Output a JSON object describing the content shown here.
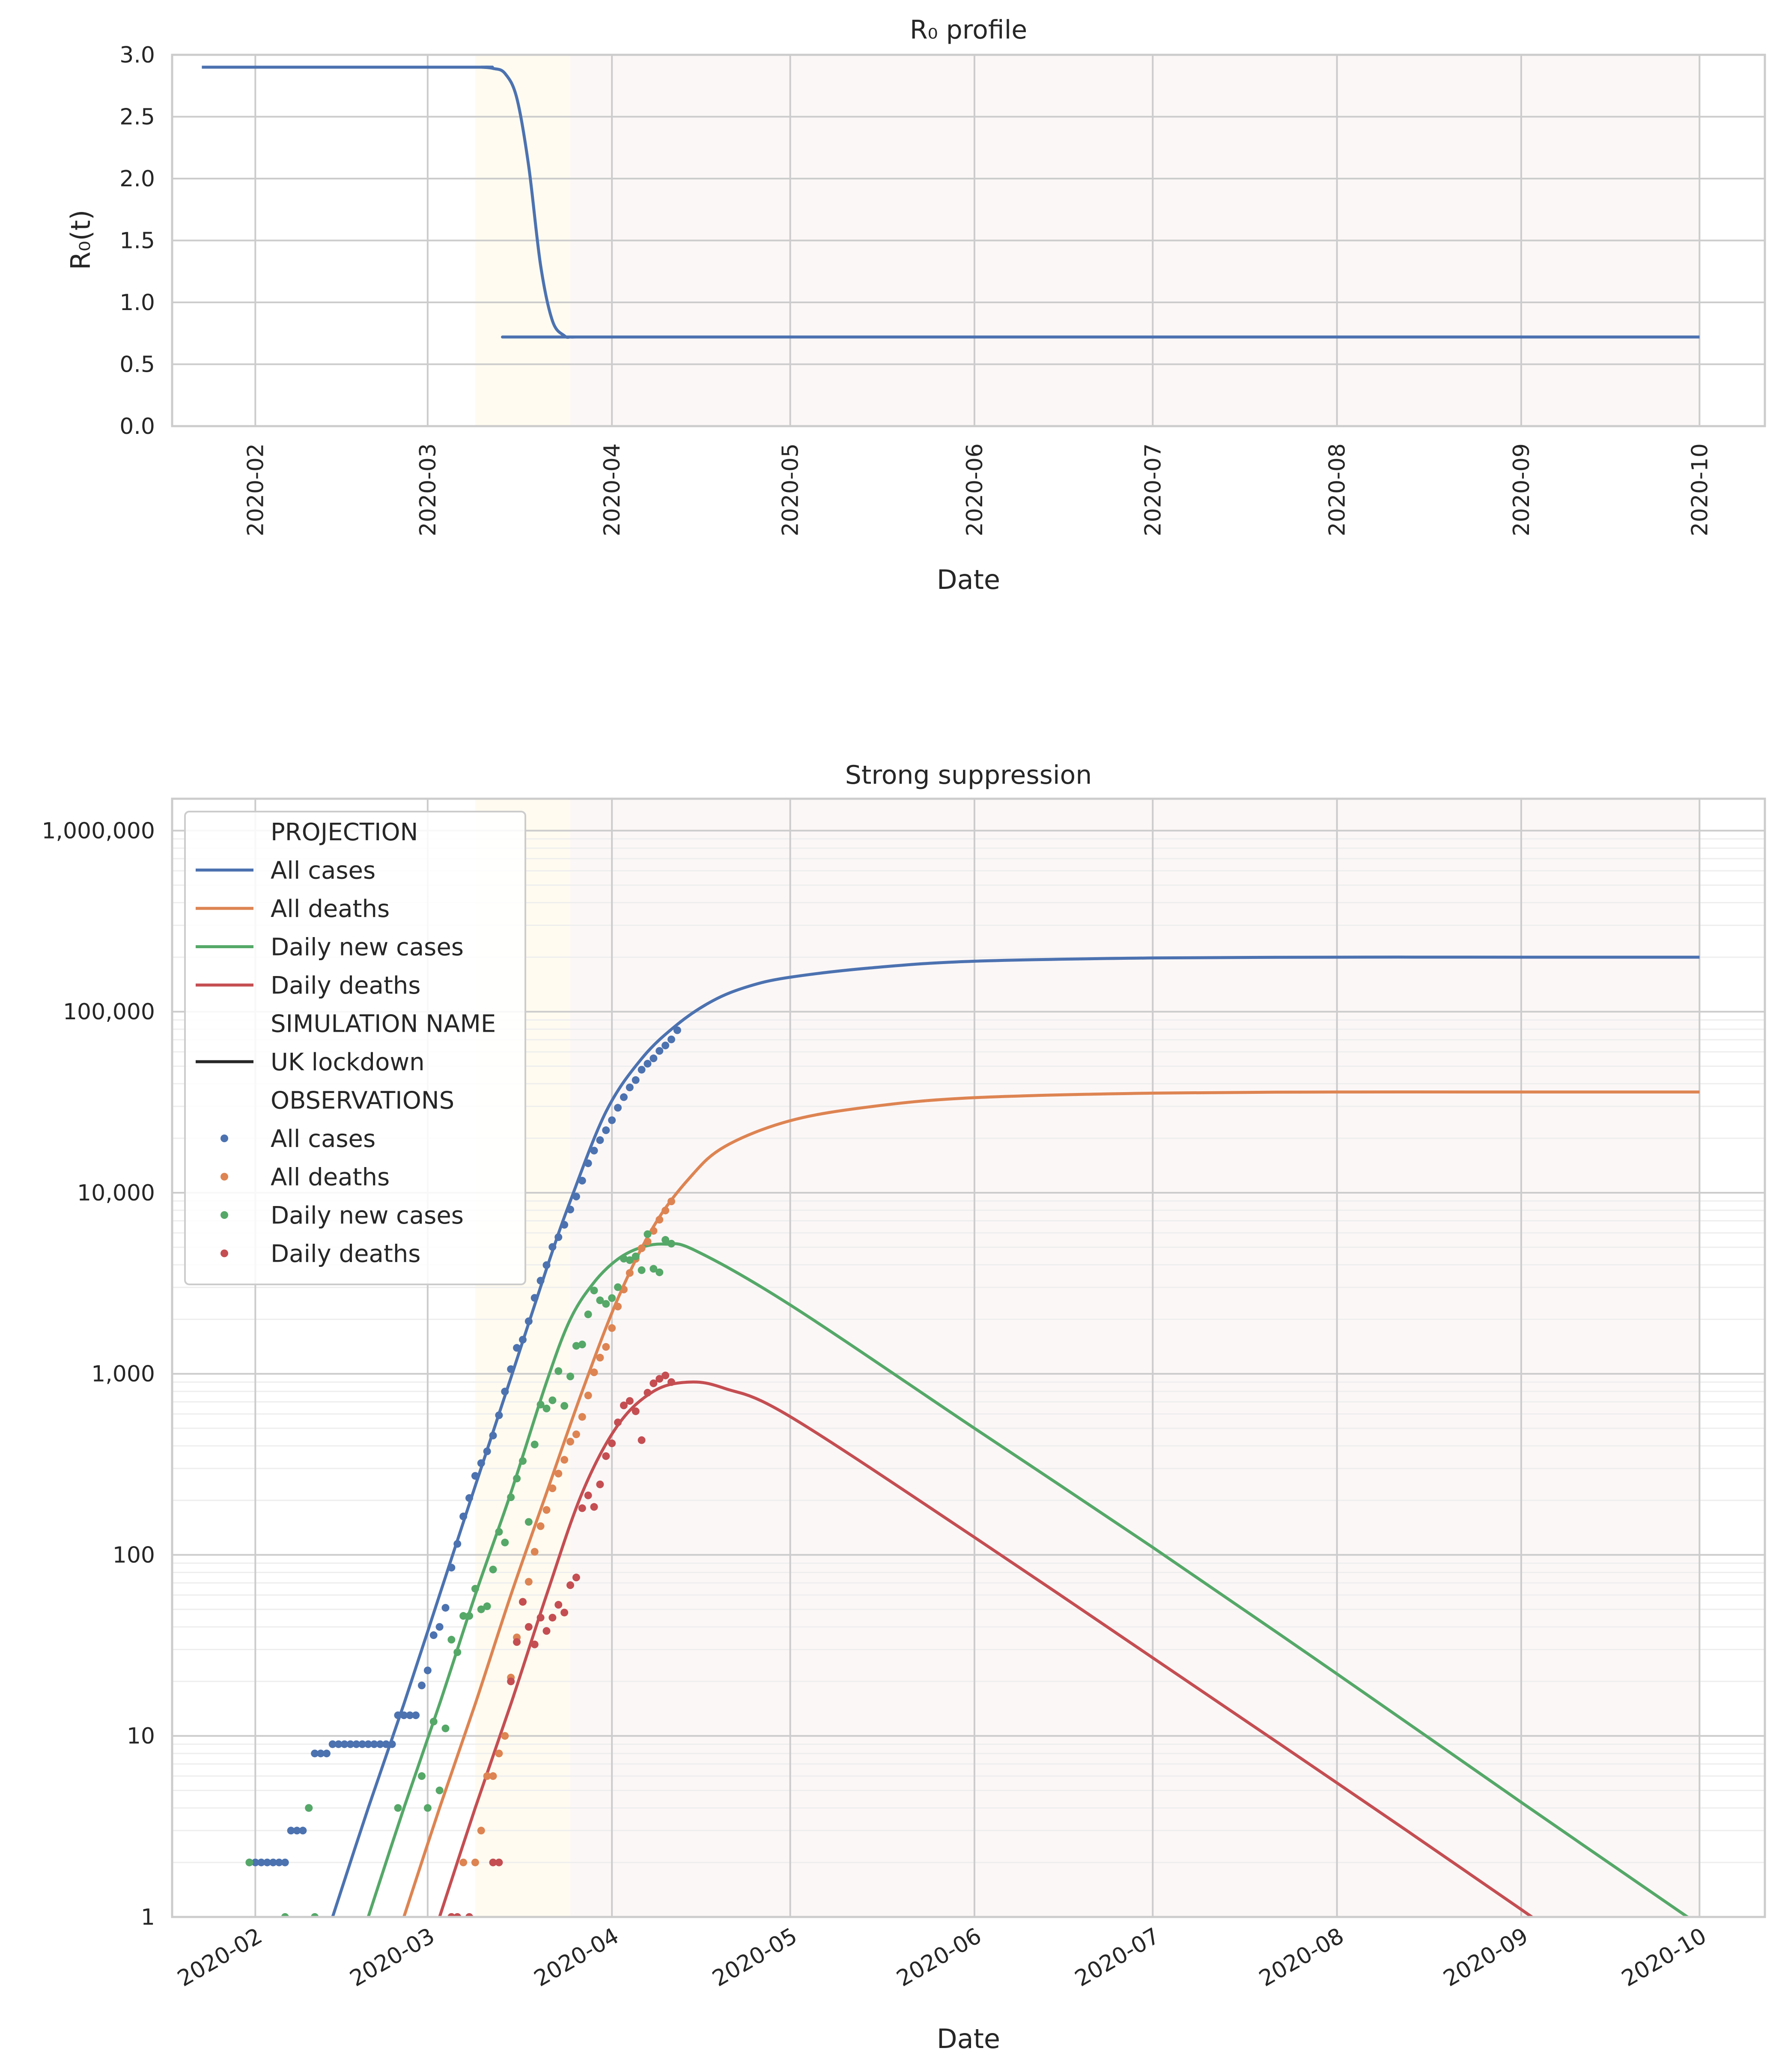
{
  "chart_data": [
    {
      "type": "line",
      "title": "R₀ profile",
      "xlabel": "Date",
      "ylabel": "R₀(t)",
      "xlim": [
        "2020-01-18",
        "2020-10-12"
      ],
      "ylim": [
        0,
        3
      ],
      "yticks": [
        0,
        0.5,
        1,
        1.5,
        2,
        2.5,
        3
      ],
      "ytick_labels": [
        "0.0",
        "0.5",
        "1.0",
        "1.5",
        "2.0",
        "2.5",
        "3.0"
      ],
      "xtick_labels": [
        "2020-02",
        "2020-03",
        "2020-04",
        "2020-05",
        "2020-06",
        "2020-07",
        "2020-08",
        "2020-09",
        "2020-10"
      ],
      "xtick_dates": [
        "2020-02-01",
        "2020-03-01",
        "2020-04-01",
        "2020-05-01",
        "2020-06-01",
        "2020-07-01",
        "2020-08-01",
        "2020-09-01",
        "2020-10-01"
      ],
      "grid": true,
      "shaded_regions": [
        {
          "start": "2020-03-09",
          "end": "2020-03-25",
          "color": "#fffbf0"
        },
        {
          "start": "2020-03-25",
          "end": "2020-10-01",
          "color": "#fcf7f7"
        }
      ],
      "series": [
        {
          "color": "#4c72b0",
          "x": [
            "2020-01-23",
            "2020-03-08",
            "2020-03-10",
            "2020-03-12",
            "2020-03-14",
            "2020-03-16",
            "2020-03-18",
            "2020-03-20",
            "2020-03-22",
            "2020-03-24",
            "2020-03-25",
            "2020-03-26",
            "2020-03-28",
            "2020-10-01"
          ],
          "values": [
            2.9,
            2.9,
            2.9,
            2.89,
            2.85,
            2.65,
            2.1,
            1.3,
            0.85,
            0.73,
            0.72,
            0.72,
            0.72,
            0.72
          ]
        }
      ]
    },
    {
      "type": "line",
      "title": "Strong suppression",
      "xlabel": "Date",
      "ylabel": "",
      "yscale": "log",
      "xlim": [
        "2020-01-18",
        "2020-10-12"
      ],
      "ylim": [
        1,
        1500000
      ],
      "yticks": [
        1,
        10,
        100,
        1000,
        10000,
        100000,
        1000000
      ],
      "ytick_labels": [
        "1",
        "10",
        "100",
        "1,000",
        "10,000",
        "100,000",
        "1,000,000"
      ],
      "xtick_labels": [
        "2020-02",
        "2020-03",
        "2020-04",
        "2020-05",
        "2020-06",
        "2020-07",
        "2020-08",
        "2020-09",
        "2020-10"
      ],
      "xtick_dates": [
        "2020-02-01",
        "2020-03-01",
        "2020-04-01",
        "2020-05-01",
        "2020-06-01",
        "2020-07-01",
        "2020-08-01",
        "2020-09-01",
        "2020-10-01"
      ],
      "grid": true,
      "shaded_regions": [
        {
          "start": "2020-03-09",
          "end": "2020-03-25",
          "color": "#fffbf0"
        },
        {
          "start": "2020-03-25",
          "end": "2020-10-01",
          "color": "#fcf7f7"
        }
      ],
      "legend": {
        "position": "top-left",
        "entries": [
          {
            "label": "PROJECTION",
            "kind": "header"
          },
          {
            "label": "All cases",
            "kind": "line",
            "color": "#4c72b0"
          },
          {
            "label": "All deaths",
            "kind": "line",
            "color": "#dd8452"
          },
          {
            "label": "Daily new cases",
            "kind": "line",
            "color": "#55a868"
          },
          {
            "label": "Daily deaths",
            "kind": "line",
            "color": "#c44e52"
          },
          {
            "label": "SIMULATION NAME",
            "kind": "header"
          },
          {
            "label": "UK lockdown",
            "kind": "line",
            "color": "#262626"
          },
          {
            "label": "OBSERVATIONS",
            "kind": "header"
          },
          {
            "label": "All cases",
            "kind": "dot",
            "color": "#4c72b0"
          },
          {
            "label": "All deaths",
            "kind": "dot",
            "color": "#dd8452"
          },
          {
            "label": "Daily new cases",
            "kind": "dot",
            "color": "#55a868"
          },
          {
            "label": "Daily deaths",
            "kind": "dot",
            "color": "#c44e52"
          }
        ]
      },
      "series": [
        {
          "group": "projection",
          "color": "#4c72b0",
          "x": [
            "2020-02-14",
            "2020-02-20",
            "2020-02-26",
            "2020-03-03",
            "2020-03-09",
            "2020-03-15",
            "2020-03-21",
            "2020-03-25",
            "2020-03-31",
            "2020-04-06",
            "2020-04-12",
            "2020-04-18",
            "2020-04-24",
            "2020-05-01",
            "2020-05-15",
            "2020-06-01",
            "2020-07-01",
            "2020-08-01",
            "2020-09-01",
            "2020-10-01"
          ],
          "values": [
            1,
            4,
            15,
            60,
            240,
            950,
            3800,
            9000,
            28000,
            55000,
            85000,
            115000,
            138000,
            155000,
            175000,
            190000,
            198000,
            200000,
            200000,
            200000
          ]
        },
        {
          "group": "projection",
          "color": "#dd8452",
          "x": [
            "2020-02-26",
            "2020-03-03",
            "2020-03-09",
            "2020-03-15",
            "2020-03-21",
            "2020-03-27",
            "2020-04-02",
            "2020-04-08",
            "2020-04-14",
            "2020-04-20",
            "2020-05-01",
            "2020-05-15",
            "2020-06-01",
            "2020-07-01",
            "2020-08-01",
            "2020-09-01",
            "2020-10-01"
          ],
          "values": [
            1,
            4,
            15,
            60,
            220,
            800,
            2600,
            6500,
            12000,
            18000,
            25000,
            30000,
            33500,
            35500,
            36000,
            36000,
            36000
          ]
        },
        {
          "group": "projection",
          "color": "#55a868",
          "x": [
            "2020-02-20",
            "2020-02-26",
            "2020-03-03",
            "2020-03-09",
            "2020-03-15",
            "2020-03-21",
            "2020-03-25",
            "2020-03-29",
            "2020-04-02",
            "2020-04-06",
            "2020-04-10",
            "2020-04-15",
            "2020-05-01",
            "2020-06-01",
            "2020-07-01",
            "2020-08-01",
            "2020-09-01",
            "2020-10-01"
          ],
          "values": [
            1,
            4,
            15,
            60,
            220,
            900,
            2000,
            3200,
            4300,
            5000,
            5200,
            4800,
            2400,
            500,
            110,
            22,
            4.3,
            0.9
          ]
        },
        {
          "group": "projection",
          "color": "#c44e52",
          "x": [
            "2020-03-03",
            "2020-03-09",
            "2020-03-15",
            "2020-03-21",
            "2020-03-27",
            "2020-04-02",
            "2020-04-08",
            "2020-04-14",
            "2020-04-20",
            "2020-05-01",
            "2020-06-01",
            "2020-07-01",
            "2020-08-01",
            "2020-09-01",
            "2020-10-01"
          ],
          "values": [
            1,
            4,
            15,
            60,
            220,
            520,
            800,
            900,
            830,
            580,
            125,
            27,
            5.5,
            1.1,
            0.22
          ]
        },
        {
          "group": "observations",
          "kind": "scatter",
          "color": "#4c72b0",
          "x": [
            "2020-01-31",
            "2020-02-01",
            "2020-02-02",
            "2020-02-03",
            "2020-02-04",
            "2020-02-05",
            "2020-02-06",
            "2020-02-07",
            "2020-02-08",
            "2020-02-09",
            "2020-02-10",
            "2020-02-11",
            "2020-02-12",
            "2020-02-13",
            "2020-02-14",
            "2020-02-15",
            "2020-02-16",
            "2020-02-17",
            "2020-02-18",
            "2020-02-19",
            "2020-02-20",
            "2020-02-21",
            "2020-02-22",
            "2020-02-23",
            "2020-02-24",
            "2020-02-25",
            "2020-02-26",
            "2020-02-27",
            "2020-02-28",
            "2020-02-29",
            "2020-03-01",
            "2020-03-02",
            "2020-03-03",
            "2020-03-04",
            "2020-03-05",
            "2020-03-06",
            "2020-03-07",
            "2020-03-08",
            "2020-03-09",
            "2020-03-10",
            "2020-03-11",
            "2020-03-12",
            "2020-03-13",
            "2020-03-14",
            "2020-03-15",
            "2020-03-16",
            "2020-03-17",
            "2020-03-18",
            "2020-03-19",
            "2020-03-20",
            "2020-03-21",
            "2020-03-22",
            "2020-03-23",
            "2020-03-24",
            "2020-03-25",
            "2020-03-26",
            "2020-03-27",
            "2020-03-28",
            "2020-03-29",
            "2020-03-30",
            "2020-03-31",
            "2020-04-01",
            "2020-04-02",
            "2020-04-03",
            "2020-04-04",
            "2020-04-05",
            "2020-04-06",
            "2020-04-07",
            "2020-04-08",
            "2020-04-09",
            "2020-04-10",
            "2020-04-11",
            "2020-04-12"
          ],
          "values": [
            2,
            2,
            2,
            2,
            2,
            2,
            2,
            3,
            3,
            3,
            4,
            8,
            8,
            8,
            9,
            9,
            9,
            9,
            9,
            9,
            9,
            9,
            9,
            9,
            9,
            13,
            13,
            13,
            13,
            19,
            23,
            36,
            40,
            51,
            85,
            115,
            163,
            206,
            273,
            321,
            373,
            456,
            590,
            798,
            1061,
            1391,
            1543,
            1950,
            2626,
            3269,
            3983,
            5018,
            5683,
            6650,
            8077,
            9529,
            11658,
            14543,
            17089,
            19522,
            22141,
            25150,
            29474,
            33718,
            38168,
            41903,
            47806,
            51608,
            55242,
            60733,
            65077,
            70272,
            78991
          ]
        },
        {
          "group": "observations",
          "kind": "scatter",
          "color": "#dd8452",
          "x": [
            "2020-03-05",
            "2020-03-07",
            "2020-03-09",
            "2020-03-10",
            "2020-03-11",
            "2020-03-12",
            "2020-03-13",
            "2020-03-14",
            "2020-03-15",
            "2020-03-16",
            "2020-03-17",
            "2020-03-18",
            "2020-03-19",
            "2020-03-20",
            "2020-03-21",
            "2020-03-22",
            "2020-03-23",
            "2020-03-24",
            "2020-03-25",
            "2020-03-26",
            "2020-03-27",
            "2020-03-28",
            "2020-03-29",
            "2020-03-30",
            "2020-03-31",
            "2020-04-01",
            "2020-04-02",
            "2020-04-03",
            "2020-04-04",
            "2020-04-05",
            "2020-04-06",
            "2020-04-07",
            "2020-04-08",
            "2020-04-09",
            "2020-04-10",
            "2020-04-11"
          ],
          "values": [
            1,
            2,
            2,
            3,
            6,
            6,
            8,
            10,
            21,
            35,
            55,
            71,
            104,
            144,
            177,
            233,
            281,
            335,
            422,
            463,
            578,
            759,
            1019,
            1228,
            1408,
            1789,
            2352,
            2921,
            3605,
            4313,
            4934,
            5373,
            6159,
            7097,
            7978,
            8958
          ]
        },
        {
          "group": "observations",
          "kind": "scatter",
          "color": "#55a868",
          "x": [
            "2020-01-31",
            "2020-02-06",
            "2020-02-10",
            "2020-02-11",
            "2020-02-25",
            "2020-02-29",
            "2020-03-01",
            "2020-03-02",
            "2020-03-03",
            "2020-03-04",
            "2020-03-05",
            "2020-03-06",
            "2020-03-07",
            "2020-03-08",
            "2020-03-09",
            "2020-03-10",
            "2020-03-11",
            "2020-03-12",
            "2020-03-13",
            "2020-03-14",
            "2020-03-15",
            "2020-03-16",
            "2020-03-17",
            "2020-03-18",
            "2020-03-19",
            "2020-03-20",
            "2020-03-21",
            "2020-03-22",
            "2020-03-23",
            "2020-03-24",
            "2020-03-25",
            "2020-03-26",
            "2020-03-27",
            "2020-03-28",
            "2020-03-29",
            "2020-03-30",
            "2020-03-31",
            "2020-04-01",
            "2020-04-02",
            "2020-04-03",
            "2020-04-04",
            "2020-04-05",
            "2020-04-06",
            "2020-04-07",
            "2020-04-08",
            "2020-04-09",
            "2020-04-10",
            "2020-04-11"
          ],
          "values": [
            2,
            1,
            4,
            1,
            4,
            6,
            4,
            12,
            5,
            11,
            34,
            29,
            46,
            46,
            65,
            50,
            52,
            83,
            134,
            117,
            208,
            264,
            330,
            152,
            407,
            676,
            643,
            714,
            1035,
            665,
            967,
            1427,
            1452,
            2129,
            2885,
            2546,
            2433,
            2619,
            3009,
            4324,
            4244,
            4450,
            3735,
            5903,
            3802,
            3634,
            5491,
            5233
          ]
        },
        {
          "group": "observations",
          "kind": "scatter",
          "color": "#c44e52",
          "x": [
            "2020-03-05",
            "2020-03-06",
            "2020-03-08",
            "2020-03-12",
            "2020-03-13",
            "2020-03-15",
            "2020-03-16",
            "2020-03-17",
            "2020-03-18",
            "2020-03-19",
            "2020-03-20",
            "2020-03-21",
            "2020-03-22",
            "2020-03-23",
            "2020-03-24",
            "2020-03-25",
            "2020-03-26",
            "2020-03-27",
            "2020-03-28",
            "2020-03-29",
            "2020-03-30",
            "2020-03-31",
            "2020-04-01",
            "2020-04-02",
            "2020-04-03",
            "2020-04-04",
            "2020-04-05",
            "2020-04-06",
            "2020-04-07",
            "2020-04-08",
            "2020-04-09",
            "2020-04-10",
            "2020-04-11"
          ],
          "values": [
            1,
            1,
            1,
            2,
            2,
            20,
            33,
            55,
            40,
            32,
            45,
            38,
            45,
            53,
            48,
            68,
            75,
            181,
            213,
            184,
            245,
            351,
            413,
            539,
            669,
            708,
            621,
            430,
            786,
            886,
            938,
            979,
            900
          ]
        }
      ]
    }
  ]
}
